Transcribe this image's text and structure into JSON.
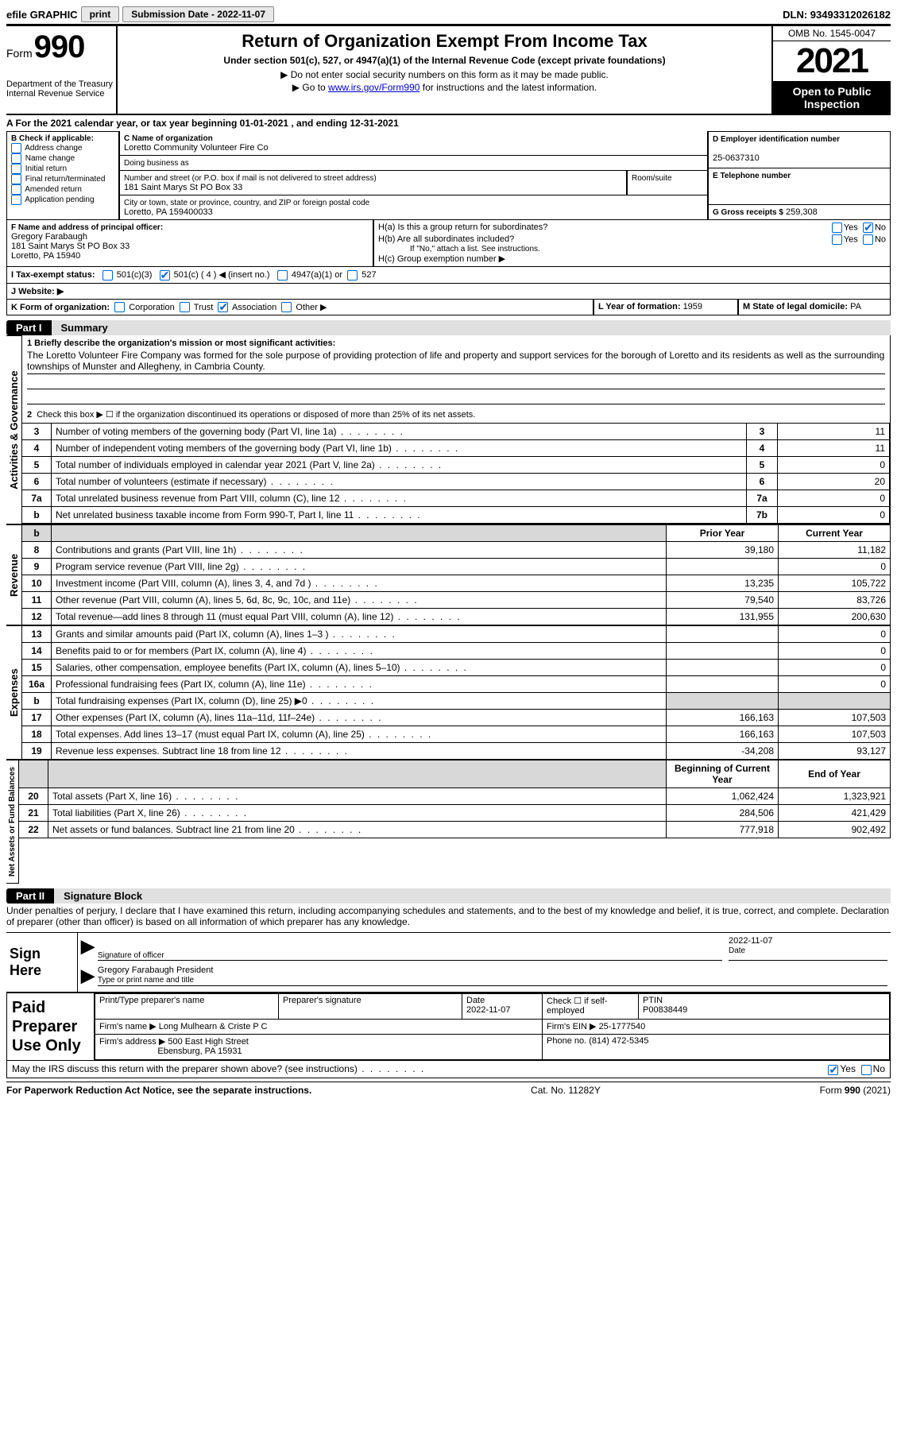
{
  "topbar": {
    "efile": "efile GRAPHIC",
    "print": "print",
    "sub_label": "Submission Date - 2022-11-07",
    "dln": "DLN: 93493312026182"
  },
  "header": {
    "form_word": "Form",
    "form_no": "990",
    "title": "Return of Organization Exempt From Income Tax",
    "subtitle": "Under section 501(c), 527, or 4947(a)(1) of the Internal Revenue Code (except private foundations)",
    "note1": "▶ Do not enter social security numbers on this form as it may be made public.",
    "note2_pre": "▶ Go to ",
    "note2_link": "www.irs.gov/Form990",
    "note2_post": " for instructions and the latest information.",
    "dept": "Department of the Treasury\nInternal Revenue Service",
    "omb": "OMB No. 1545-0047",
    "year": "2021",
    "open": "Open to Public Inspection"
  },
  "A": {
    "text": "A For the 2021 calendar year, or tax year beginning 01-01-2021   , and ending 12-31-2021"
  },
  "B": {
    "label": "B Check if applicable:",
    "opts": [
      "Address change",
      "Name change",
      "Initial return",
      "Final return/terminated",
      "Amended return",
      "Application pending"
    ]
  },
  "C": {
    "name_label": "C Name of organization",
    "name": "Loretto Community Volunteer Fire Co",
    "dba": "Doing business as",
    "addr_label": "Number and street (or P.O. box if mail is not delivered to street address)",
    "addr": "181 Saint Marys St PO Box 33",
    "room": "Room/suite",
    "city_label": "City or town, state or province, country, and ZIP or foreign postal code",
    "city": "Loretto, PA  159400033"
  },
  "D": {
    "label": "D Employer identification number",
    "val": "25-0637310"
  },
  "E": {
    "label": "E Telephone number",
    "val": ""
  },
  "G": {
    "label": "G Gross receipts $",
    "val": "259,308"
  },
  "F": {
    "label": "F  Name and address of principal officer:",
    "name": "Gregory Farabaugh",
    "addr": "181 Saint Marys St PO Box 33",
    "city": "Loretto, PA  15940"
  },
  "H": {
    "a": "H(a)  Is this a group return for subordinates?",
    "b": "H(b)  Are all subordinates included?",
    "b_note": "If \"No,\" attach a list. See instructions.",
    "c": "H(c)  Group exemption number ▶",
    "yes": "Yes",
    "no": "No"
  },
  "I": {
    "label": "I  Tax-exempt status:",
    "o1": "501(c)(3)",
    "o2": "501(c) ( 4 ) ◀ (insert no.)",
    "o3": "4947(a)(1) or",
    "o4": "527"
  },
  "J": {
    "label": "J  Website: ▶"
  },
  "K": {
    "label": "K Form of organization:",
    "o1": "Corporation",
    "o2": "Trust",
    "o3": "Association",
    "o4": "Other ▶"
  },
  "L": {
    "label": "L Year of formation: ",
    "val": "1959"
  },
  "M": {
    "label": "M State of legal domicile: ",
    "val": "PA"
  },
  "part1": {
    "tag": "Part I",
    "title": "Summary"
  },
  "summary": {
    "q1_label": "1  Briefly describe the organization's mission or most significant activities:",
    "q1_text": "The Loretto Volunteer Fire Company was formed for the sole purpose of providing protection of life and property and support services for the borough of Loretto and its residents as well as the surrounding townships of Munster and Allegheny, in Cambria County.",
    "q2": "Check this box ▶ ☐  if the organization discontinued its operations or disposed of more than 25% of its net assets.",
    "rows_gov": [
      {
        "n": "3",
        "txt": "Number of voting members of the governing body (Part VI, line 1a)",
        "box": "3",
        "val": "11"
      },
      {
        "n": "4",
        "txt": "Number of independent voting members of the governing body (Part VI, line 1b)",
        "box": "4",
        "val": "11"
      },
      {
        "n": "5",
        "txt": "Total number of individuals employed in calendar year 2021 (Part V, line 2a)",
        "box": "5",
        "val": "0"
      },
      {
        "n": "6",
        "txt": "Total number of volunteers (estimate if necessary)",
        "box": "6",
        "val": "20"
      },
      {
        "n": "7a",
        "txt": "Total unrelated business revenue from Part VIII, column (C), line 12",
        "box": "7a",
        "val": "0"
      },
      {
        "n": "b",
        "txt": "Net unrelated business taxable income from Form 990-T, Part I, line 11",
        "box": "7b",
        "val": "0"
      }
    ],
    "col_prior": "Prior Year",
    "col_curr": "Current Year",
    "rows_rev": [
      {
        "n": "8",
        "txt": "Contributions and grants (Part VIII, line 1h)",
        "p": "39,180",
        "c": "11,182"
      },
      {
        "n": "9",
        "txt": "Program service revenue (Part VIII, line 2g)",
        "p": "",
        "c": "0"
      },
      {
        "n": "10",
        "txt": "Investment income (Part VIII, column (A), lines 3, 4, and 7d )",
        "p": "13,235",
        "c": "105,722"
      },
      {
        "n": "11",
        "txt": "Other revenue (Part VIII, column (A), lines 5, 6d, 8c, 9c, 10c, and 11e)",
        "p": "79,540",
        "c": "83,726"
      },
      {
        "n": "12",
        "txt": "Total revenue—add lines 8 through 11 (must equal Part VIII, column (A), line 12)",
        "p": "131,955",
        "c": "200,630"
      }
    ],
    "rows_exp": [
      {
        "n": "13",
        "txt": "Grants and similar amounts paid (Part IX, column (A), lines 1–3 )",
        "p": "",
        "c": "0"
      },
      {
        "n": "14",
        "txt": "Benefits paid to or for members (Part IX, column (A), line 4)",
        "p": "",
        "c": "0"
      },
      {
        "n": "15",
        "txt": "Salaries, other compensation, employee benefits (Part IX, column (A), lines 5–10)",
        "p": "",
        "c": "0"
      },
      {
        "n": "16a",
        "txt": "Professional fundraising fees (Part IX, column (A), line 11e)",
        "p": "",
        "c": "0"
      },
      {
        "n": "b",
        "txt": "Total fundraising expenses (Part IX, column (D), line 25) ▶0",
        "p": "shade",
        "c": "shade"
      },
      {
        "n": "17",
        "txt": "Other expenses (Part IX, column (A), lines 11a–11d, 11f–24e)",
        "p": "166,163",
        "c": "107,503"
      },
      {
        "n": "18",
        "txt": "Total expenses. Add lines 13–17 (must equal Part IX, column (A), line 25)",
        "p": "166,163",
        "c": "107,503"
      },
      {
        "n": "19",
        "txt": "Revenue less expenses. Subtract line 18 from line 12",
        "p": "-34,208",
        "c": "93,127"
      }
    ],
    "col_bcy": "Beginning of Current Year",
    "col_eoy": "End of Year",
    "rows_net": [
      {
        "n": "20",
        "txt": "Total assets (Part X, line 16)",
        "p": "1,062,424",
        "c": "1,323,921"
      },
      {
        "n": "21",
        "txt": "Total liabilities (Part X, line 26)",
        "p": "284,506",
        "c": "421,429"
      },
      {
        "n": "22",
        "txt": "Net assets or fund balances. Subtract line 21 from line 20",
        "p": "777,918",
        "c": "902,492"
      }
    ]
  },
  "tabs": {
    "gov": "Activities & Governance",
    "rev": "Revenue",
    "exp": "Expenses",
    "net": "Net Assets or Fund Balances"
  },
  "part2": {
    "tag": "Part II",
    "title": "Signature Block"
  },
  "sig": {
    "decl": "Under penalties of perjury, I declare that I have examined this return, including accompanying schedules and statements, and to the best of my knowledge and belief, it is true, correct, and complete. Declaration of preparer (other than officer) is based on all information of which preparer has any knowledge.",
    "sign_here": "Sign Here",
    "sig_of": "Signature of officer",
    "date": "Date",
    "date_val": "2022-11-07",
    "typed": "Gregory Farabaugh  President",
    "typed_label": "Type or print name and title"
  },
  "paid": {
    "title": "Paid Preparer Use Only",
    "c1": "Print/Type preparer's name",
    "c2": "Preparer's signature",
    "c3": "Date",
    "c3v": "2022-11-07",
    "c4": "Check ☐ if self-employed",
    "c5": "PTIN",
    "c5v": "P00838449",
    "firm_name_l": "Firm's name    ▶",
    "firm_name": "Long Mulhearn & Criste P C",
    "firm_ein_l": "Firm's EIN ▶",
    "firm_ein": "25-1777540",
    "firm_addr_l": "Firm's address ▶",
    "firm_addr1": "500 East High Street",
    "firm_addr2": "Ebensburg, PA  15931",
    "phone_l": "Phone no.",
    "phone": "(814) 472-5345"
  },
  "discuss": {
    "txt": "May the IRS discuss this return with the preparer shown above? (see instructions)",
    "yes": "Yes",
    "no": "No"
  },
  "footer": {
    "left": "For Paperwork Reduction Act Notice, see the separate instructions.",
    "mid": "Cat. No. 11282Y",
    "right": "Form 990 (2021)"
  }
}
